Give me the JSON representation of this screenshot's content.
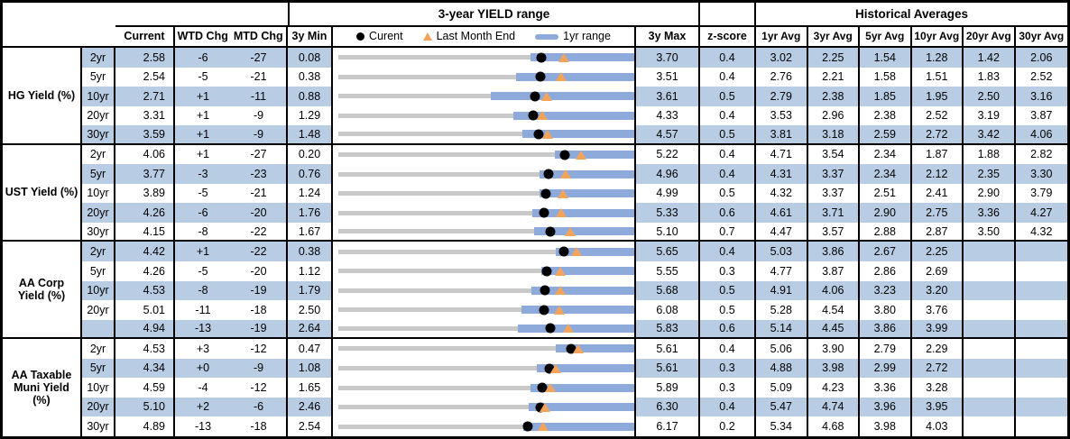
{
  "header": {
    "range_title": "3-year YIELD range",
    "historical_title": "Historical Averages",
    "current": "Current",
    "wtd": "WTD Chg",
    "mtd": "MTD Chg",
    "min3y": "3y Min",
    "max3y": "3y Max",
    "zscore": "z-score",
    "avg_cols": [
      "1yr Avg",
      "3yr Avg",
      "5yr Avg",
      "10yr Avg",
      "20yr Avg",
      "30yr Avg"
    ],
    "legend": {
      "current": "Curent",
      "lme": "Last Month End",
      "range": "1yr range"
    }
  },
  "colors": {
    "stripe": "#B8CCE4",
    "bar": "#8EAADB",
    "track": "#C9C9C9",
    "marker_current": "#000000",
    "marker_last_month_end": "#F3A45A"
  },
  "chart_data": {
    "type": "table",
    "title": "3-year YIELD range",
    "legend_entries": [
      "Curent",
      "Last Month End",
      "1yr range"
    ],
    "note": "Each row: dot=current yield, triangle=last month end, blue bar=1yr range, axis spans 3y min to 3y max",
    "groups": [
      {
        "label": "HG Yield (%)",
        "rows": [
          {
            "tenor": "2yr",
            "current": "2.58",
            "wtd": "-6",
            "mtd": "-27",
            "min3y": "0.08",
            "max3y": "3.70",
            "zscore": "0.4",
            "avgs": [
              "3.02",
              "2.25",
              "1.54",
              "1.28",
              "1.42",
              "2.06"
            ],
            "lme": 2.85,
            "low1yr": 2.45
          },
          {
            "tenor": "5yr",
            "current": "2.54",
            "wtd": "-5",
            "mtd": "-21",
            "min3y": "0.38",
            "max3y": "3.51",
            "zscore": "0.4",
            "avgs": [
              "2.76",
              "2.21",
              "1.58",
              "1.51",
              "1.83",
              "2.52"
            ],
            "lme": 2.75,
            "low1yr": 2.28
          },
          {
            "tenor": "10yr",
            "current": "2.71",
            "wtd": "+1",
            "mtd": "-11",
            "min3y": "0.88",
            "max3y": "3.61",
            "zscore": "0.5",
            "avgs": [
              "2.79",
              "2.38",
              "1.85",
              "1.95",
              "2.50",
              "3.16"
            ],
            "lme": 2.82,
            "low1yr": 2.31
          },
          {
            "tenor": "20yr",
            "current": "3.31",
            "wtd": "+1",
            "mtd": "-9",
            "min3y": "1.29",
            "max3y": "4.33",
            "zscore": "0.4",
            "avgs": [
              "3.53",
              "2.96",
              "2.38",
              "2.52",
              "3.19",
              "3.87"
            ],
            "lme": 3.4,
            "low1yr": 3.11
          },
          {
            "tenor": "30yr",
            "current": "3.59",
            "wtd": "+1",
            "mtd": "-9",
            "min3y": "1.48",
            "max3y": "4.57",
            "zscore": "0.5",
            "avgs": [
              "3.81",
              "3.18",
              "2.59",
              "2.72",
              "3.42",
              "4.06"
            ],
            "lme": 3.68,
            "low1yr": 3.42
          }
        ]
      },
      {
        "label": "UST Yield (%)",
        "rows": [
          {
            "tenor": "2yr",
            "current": "4.06",
            "wtd": "+1",
            "mtd": "-27",
            "min3y": "0.20",
            "max3y": "5.22",
            "zscore": "0.4",
            "avgs": [
              "4.71",
              "3.54",
              "2.34",
              "1.87",
              "1.88",
              "2.82"
            ],
            "lme": 4.33,
            "low1yr": 3.89
          },
          {
            "tenor": "5yr",
            "current": "3.77",
            "wtd": "-3",
            "mtd": "-23",
            "min3y": "0.76",
            "max3y": "4.96",
            "zscore": "0.4",
            "avgs": [
              "4.31",
              "3.37",
              "2.34",
              "2.12",
              "2.35",
              "3.30"
            ],
            "lme": 4.0,
            "low1yr": 3.64
          },
          {
            "tenor": "10yr",
            "current": "3.89",
            "wtd": "-5",
            "mtd": "-21",
            "min3y": "1.24",
            "max3y": "4.99",
            "zscore": "0.5",
            "avgs": [
              "4.32",
              "3.37",
              "2.51",
              "2.41",
              "2.90",
              "3.79"
            ],
            "lme": 4.1,
            "low1yr": 3.81
          },
          {
            "tenor": "20yr",
            "current": "4.26",
            "wtd": "-6",
            "mtd": "-20",
            "min3y": "1.76",
            "max3y": "5.33",
            "zscore": "0.6",
            "avgs": [
              "4.61",
              "3.71",
              "2.90",
              "2.75",
              "3.36",
              "4.27"
            ],
            "lme": 4.46,
            "low1yr": 4.12
          },
          {
            "tenor": "30yr",
            "current": "4.15",
            "wtd": "-8",
            "mtd": "-22",
            "min3y": "1.67",
            "max3y": "5.10",
            "zscore": "0.7",
            "avgs": [
              "4.47",
              "3.57",
              "2.88",
              "2.87",
              "3.50",
              "4.32"
            ],
            "lme": 4.37,
            "low1yr": 3.96
          }
        ]
      },
      {
        "label": "AA Corp Yield (%)",
        "rows": [
          {
            "tenor": "2yr",
            "current": "4.42",
            "wtd": "+1",
            "mtd": "-22",
            "min3y": "0.38",
            "max3y": "5.65",
            "zscore": "0.4",
            "avgs": [
              "5.03",
              "3.86",
              "2.67",
              "2.25",
              "",
              ""
            ],
            "lme": 4.64,
            "low1yr": 4.28
          },
          {
            "tenor": "5yr",
            "current": "4.26",
            "wtd": "-5",
            "mtd": "-20",
            "min3y": "1.12",
            "max3y": "5.55",
            "zscore": "0.3",
            "avgs": [
              "4.77",
              "3.87",
              "2.86",
              "2.69",
              "",
              ""
            ],
            "lme": 4.46,
            "low1yr": 4.18
          },
          {
            "tenor": "10yr",
            "current": "4.53",
            "wtd": "-8",
            "mtd": "-19",
            "min3y": "1.79",
            "max3y": "5.68",
            "zscore": "0.5",
            "avgs": [
              "4.91",
              "4.06",
              "3.23",
              "3.20",
              "",
              ""
            ],
            "lme": 4.72,
            "low1yr": 4.35
          },
          {
            "tenor": "20yr",
            "current": "5.01",
            "wtd": "-11",
            "mtd": "-18",
            "min3y": "2.50",
            "max3y": "6.08",
            "zscore": "0.5",
            "avgs": [
              "5.28",
              "4.54",
              "3.80",
              "3.76",
              "",
              ""
            ],
            "lme": 5.19,
            "low1yr": 4.74
          },
          {
            "tenor": "",
            "current": "4.94",
            "wtd": "-13",
            "mtd": "-19",
            "min3y": "2.64",
            "max3y": "5.83",
            "zscore": "0.6",
            "avgs": [
              "5.14",
              "4.45",
              "3.86",
              "3.99",
              "",
              ""
            ],
            "lme": 5.13,
            "low1yr": 4.6
          }
        ]
      },
      {
        "label": "AA Taxable Muni Yield (%)",
        "rows": [
          {
            "tenor": "2yr",
            "current": "4.53",
            "wtd": "+3",
            "mtd": "-12",
            "min3y": "0.47",
            "max3y": "5.61",
            "zscore": "0.4",
            "avgs": [
              "5.06",
              "3.90",
              "2.79",
              "2.29",
              "",
              ""
            ],
            "lme": 4.65,
            "low1yr": 4.27
          },
          {
            "tenor": "5yr",
            "current": "4.34",
            "wtd": "+0",
            "mtd": "-9",
            "min3y": "1.08",
            "max3y": "5.61",
            "zscore": "0.3",
            "avgs": [
              "4.88",
              "3.98",
              "2.99",
              "2.72",
              "",
              ""
            ],
            "lme": 4.43,
            "low1yr": 4.14
          },
          {
            "tenor": "10yr",
            "current": "4.59",
            "wtd": "-4",
            "mtd": "-12",
            "min3y": "1.65",
            "max3y": "5.89",
            "zscore": "0.3",
            "avgs": [
              "5.09",
              "4.23",
              "3.36",
              "3.28",
              "",
              ""
            ],
            "lme": 4.71,
            "low1yr": 4.43
          },
          {
            "tenor": "20yr",
            "current": "5.10",
            "wtd": "+2",
            "mtd": "-6",
            "min3y": "2.46",
            "max3y": "6.30",
            "zscore": "0.4",
            "avgs": [
              "5.47",
              "4.74",
              "3.96",
              "3.95",
              "",
              ""
            ],
            "lme": 5.16,
            "low1yr": 4.96
          },
          {
            "tenor": "30yr",
            "current": "4.89",
            "wtd": "-13",
            "mtd": "-18",
            "min3y": "2.54",
            "max3y": "6.17",
            "zscore": "0.2",
            "avgs": [
              "5.34",
              "4.68",
              "3.98",
              "4.03",
              "",
              ""
            ],
            "lme": 5.07,
            "low1yr": 4.83
          }
        ]
      }
    ]
  }
}
